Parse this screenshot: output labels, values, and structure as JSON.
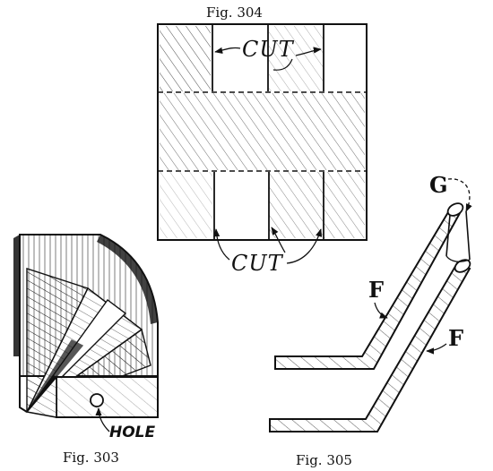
{
  "figures": {
    "fig304": {
      "caption": "Fig. 304",
      "cut_top": "CUT",
      "cut_bottom": "CUT"
    },
    "fig303": {
      "caption": "Fig. 303",
      "hole_label": "HOLE"
    },
    "fig305": {
      "caption": "Fig. 305",
      "label_g": "G",
      "label_f_upper": "F",
      "label_f_lower": "F"
    }
  },
  "colors": {
    "ink": "#111111",
    "paper": "#ffffff"
  }
}
